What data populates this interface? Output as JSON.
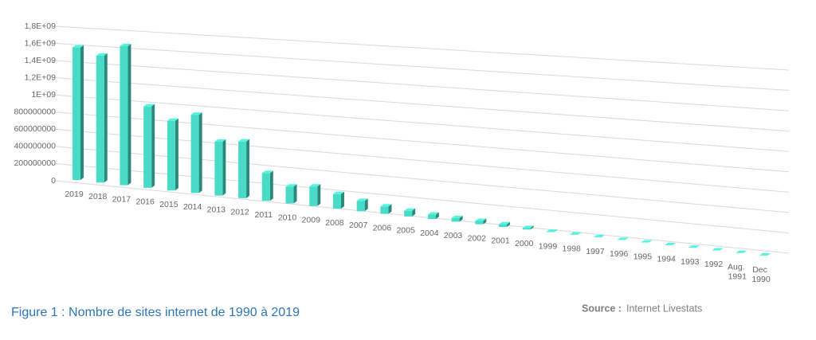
{
  "chart_data": {
    "type": "bar3d",
    "caption": "Figure 1 : Nombre de sites internet de 1990 à 2019",
    "source_label": "Source :",
    "source": "Internet Livestats",
    "categories": [
      "2019",
      "2018",
      "2017",
      "2016",
      "2015",
      "2014",
      "2013",
      "2012",
      "2011",
      "2010",
      "2009",
      "2008",
      "2007",
      "2006",
      "2005",
      "2004",
      "2003",
      "2002",
      "2001",
      "2000",
      "1999",
      "1998",
      "1997",
      "1996",
      "1995",
      "1994",
      "1993",
      "1992",
      "Aug. 1991",
      "Dec 1990"
    ],
    "values": [
      1660000000,
      1580000000,
      1720000000,
      1000000000,
      850000000,
      950000000,
      650000000,
      680000000,
      330000000,
      200000000,
      230000000,
      170000000,
      120000000,
      86000000,
      65000000,
      51000000,
      41000000,
      38000000,
      29000000,
      17000000,
      3200000,
      2400000,
      1100000,
      260000,
      24000,
      2700,
      130,
      10,
      1,
      1
    ],
    "color": "#48dcc8",
    "ylim": [
      0,
      1800000000
    ],
    "yticks": [
      0,
      200000000,
      400000000,
      600000000,
      800000000,
      {
        "value": 1000000000,
        "label": "1E+09"
      },
      {
        "value": 1200000000,
        "label": "1,2E+09"
      },
      {
        "value": 1400000000,
        "label": "1,4E+09"
      },
      {
        "value": 1600000000,
        "label": "1,6E+09"
      },
      {
        "value": 1800000000,
        "label": "1,8E+09"
      }
    ],
    "grid": true
  }
}
